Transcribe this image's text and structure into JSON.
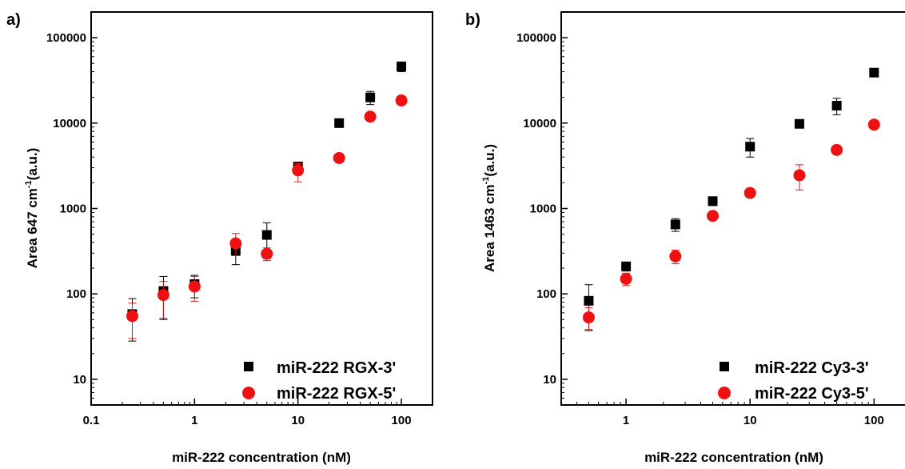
{
  "chart_data": [
    {
      "type": "scatter",
      "panel_label": "a)",
      "xlabel": "miR-222 concentration (nM)",
      "ylabel_main": "Area 647 cm",
      "ylabel_sup": "-1",
      "ylabel_unit": "(a.u.)",
      "xscale": "log",
      "yscale": "log",
      "xlim": [
        0.1,
        200
      ],
      "ylim": [
        5,
        200000
      ],
      "xticks": [
        0.1,
        1,
        10,
        100
      ],
      "xtick_labels": [
        "0.1",
        "1",
        "10",
        "100"
      ],
      "yticks": [
        10,
        100,
        1000,
        10000,
        100000
      ],
      "ytick_labels": [
        "10",
        "100",
        "1000",
        "10000",
        "100000"
      ],
      "legend_position": "bottom-right",
      "series": [
        {
          "name": "miR-222 RGX-3'",
          "marker": "square",
          "color": "#000000",
          "x": [
            0.25,
            0.5,
            1,
            2.5,
            5,
            10,
            25,
            50,
            100
          ],
          "y": [
            58,
            108,
            130,
            320,
            490,
            3100,
            10000,
            20000,
            46000
          ],
          "err_low": [
            28,
            50,
            90,
            220,
            260,
            2700,
            9600,
            16500,
            40000
          ],
          "err_high": [
            88,
            160,
            165,
            370,
            680,
            3400,
            10400,
            23500,
            52000
          ]
        },
        {
          "name": "miR-222 RGX-5'",
          "marker": "circle",
          "color": "#ee1111",
          "x": [
            0.25,
            0.5,
            1,
            2.5,
            5,
            10,
            25,
            50,
            100
          ],
          "y": [
            55,
            97,
            122,
            390,
            295,
            2800,
            3900,
            11900,
            18400
          ],
          "err_low": [
            30,
            52,
            82,
            280,
            245,
            2050,
            3700,
            11200,
            16500
          ],
          "err_high": [
            78,
            140,
            160,
            510,
            345,
            3350,
            4100,
            12600,
            20500
          ]
        }
      ]
    },
    {
      "type": "scatter",
      "panel_label": "b)",
      "xlabel": "miR-222 concentration (nM)",
      "ylabel_main": "Area 1463 cm",
      "ylabel_sup": "-1",
      "ylabel_unit": "(a.u.)",
      "xscale": "log",
      "yscale": "log",
      "xlim": [
        0.3,
        200
      ],
      "ylim": [
        5,
        200000
      ],
      "xticks": [
        1,
        10,
        100
      ],
      "xtick_labels": [
        "1",
        "10",
        "100"
      ],
      "yticks": [
        10,
        100,
        1000,
        10000,
        100000
      ],
      "ytick_labels": [
        "10",
        "100",
        "1000",
        "10000",
        "100000"
      ],
      "legend_position": "bottom-right",
      "series": [
        {
          "name": "miR-222 Cy3-3'",
          "marker": "square",
          "color": "#000000",
          "x": [
            0.5,
            1,
            2.5,
            5,
            10,
            25,
            50,
            100
          ],
          "y": [
            83,
            210,
            650,
            1220,
            5300,
            9800,
            16000,
            39000
          ],
          "err_low": [
            38,
            185,
            540,
            1080,
            4000,
            8800,
            12500,
            37000
          ],
          "err_high": [
            128,
            235,
            760,
            1360,
            6600,
            10800,
            19500,
            41000
          ]
        },
        {
          "name": "miR-222 Cy3-5'",
          "marker": "circle",
          "color": "#ee1111",
          "x": [
            0.5,
            1,
            2.5,
            5,
            10,
            25,
            50,
            100
          ],
          "y": [
            53,
            150,
            275,
            820,
            1520,
            2450,
            4850,
            9600
          ],
          "err_low": [
            37,
            125,
            225,
            760,
            1420,
            1650,
            4600,
            9200
          ],
          "err_high": [
            69,
            175,
            325,
            880,
            1620,
            3250,
            5100,
            10000
          ]
        }
      ]
    }
  ]
}
